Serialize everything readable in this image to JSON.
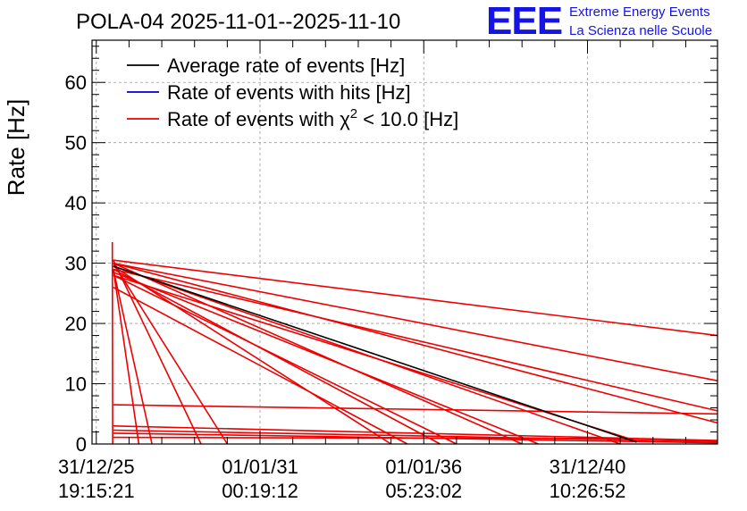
{
  "chart_data": {
    "type": "line",
    "title": "POLA-04 2025-11-01--2025-11-10",
    "xlabel": "",
    "ylabel": "Rate [Hz]",
    "xlim": [
      -0.13,
      18.97
    ],
    "ylim": [
      0,
      67
    ],
    "grid": true,
    "legend_position": "top-left",
    "x_ticks": [
      {
        "x": 0,
        "line1": "31/12/25",
        "line2": "19:15:21"
      },
      {
        "x": 5,
        "line1": "01/01/31",
        "line2": "00:19:12"
      },
      {
        "x": 10,
        "line1": "01/01/36",
        "line2": "05:23:02"
      },
      {
        "x": 15,
        "line1": "31/12/40",
        "line2": "10:26:52"
      }
    ],
    "y_ticks": [
      0,
      10,
      20,
      30,
      40,
      50,
      60
    ],
    "series": [
      {
        "name": "Average rate of events [Hz]",
        "color": "#000000",
        "segments": [
          [
            [
              0.52,
              29.5
            ],
            [
              16.5,
              0.3
            ]
          ]
        ]
      },
      {
        "name": "Rate of events with hits [Hz]",
        "color": "#0000cc",
        "segments": []
      },
      {
        "name": "Rate of events with χ2 < 10.0 [Hz]",
        "color": "#ee0000",
        "segments": [
          [
            [
              0.49,
              33.5
            ],
            [
              0.5,
              0
            ]
          ],
          [
            [
              0.52,
              30.5
            ],
            [
              18.97,
              18.0
            ]
          ],
          [
            [
              0.52,
              30.0
            ],
            [
              18.97,
              10.5
            ]
          ],
          [
            [
              0.52,
              29.0
            ],
            [
              18.97,
              5.5
            ]
          ],
          [
            [
              0.52,
              30.0
            ],
            [
              18.97,
              3.5
            ]
          ],
          [
            [
              0.52,
              28.0
            ],
            [
              16.5,
              0.5
            ]
          ],
          [
            [
              0.52,
              29.5
            ],
            [
              16.0,
              0
            ]
          ],
          [
            [
              0.52,
              30.0
            ],
            [
              13.0,
              0
            ]
          ],
          [
            [
              0.52,
              28.5
            ],
            [
              13.5,
              0
            ]
          ],
          [
            [
              0.52,
              29.0
            ],
            [
              10.5,
              0
            ]
          ],
          [
            [
              0.52,
              28.0
            ],
            [
              11.0,
              0
            ]
          ],
          [
            [
              0.52,
              26.0
            ],
            [
              9.5,
              0
            ]
          ],
          [
            [
              0.52,
              29.5
            ],
            [
              9.0,
              0
            ]
          ],
          [
            [
              0.52,
              30.0
            ],
            [
              4.0,
              0
            ]
          ],
          [
            [
              0.52,
              29.0
            ],
            [
              1.7,
              0
            ]
          ],
          [
            [
              0.52,
              29.0
            ],
            [
              1.3,
              0
            ]
          ],
          [
            [
              0.52,
              30.5
            ],
            [
              3.2,
              0
            ]
          ],
          [
            [
              0.52,
              6.5
            ],
            [
              18.97,
              5.0
            ]
          ],
          [
            [
              0.52,
              3.0
            ],
            [
              18.97,
              0.6
            ]
          ],
          [
            [
              0.52,
              2.3
            ],
            [
              18.97,
              0.4
            ]
          ],
          [
            [
              0.52,
              1.8
            ],
            [
              18.97,
              0.2
            ]
          ],
          [
            [
              0.52,
              1.1
            ],
            [
              16.0,
              0.9
            ]
          ]
        ]
      }
    ]
  },
  "logo": {
    "text": "EEE",
    "line1": "Extreme Energy Events",
    "line2": "La Scienza nelle Scuole"
  }
}
